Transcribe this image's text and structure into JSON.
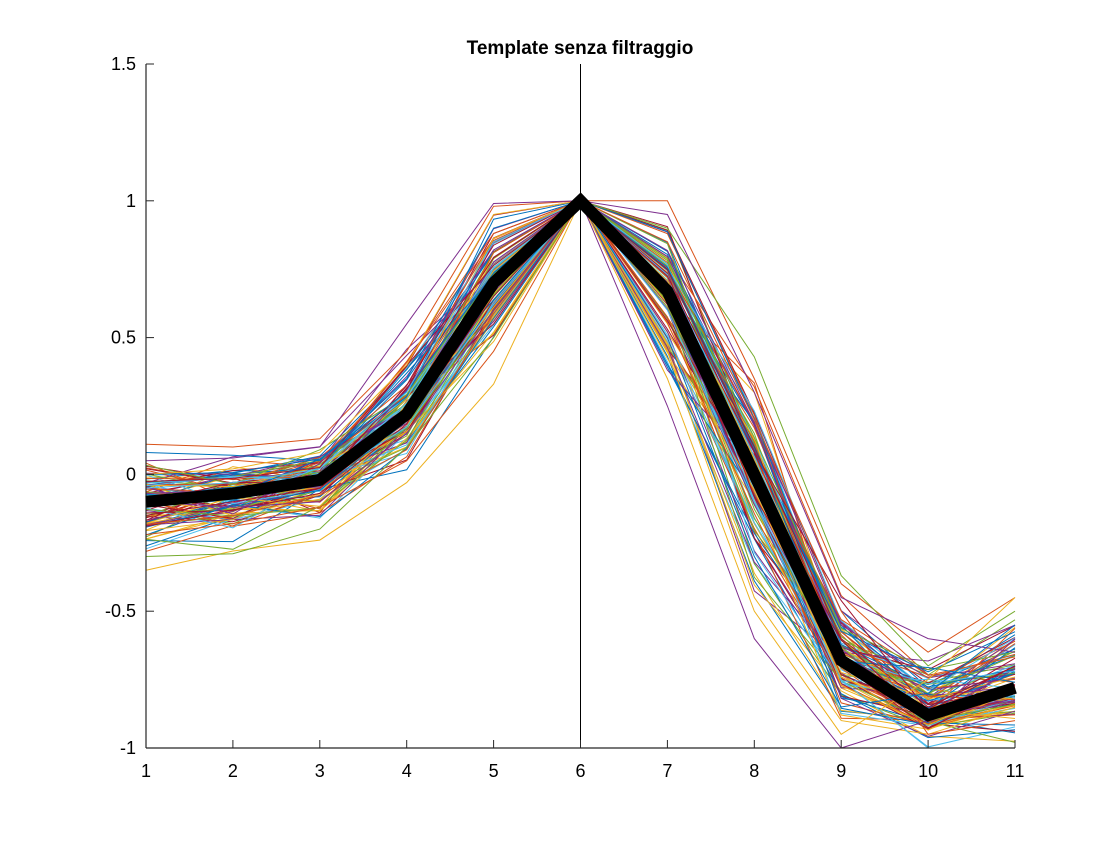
{
  "chart_data": {
    "type": "line",
    "title": "Template senza filtraggio",
    "xlabel": "",
    "ylabel": "",
    "xlim": [
      1,
      11
    ],
    "ylim": [
      -1,
      1.5
    ],
    "x": [
      1,
      2,
      3,
      4,
      5,
      6,
      7,
      8,
      9,
      10,
      11
    ],
    "x_tick_labels": [
      "1",
      "2",
      "3",
      "4",
      "5",
      "6",
      "7",
      "8",
      "9",
      "10",
      "11"
    ],
    "y_ticks": [
      -1,
      -0.5,
      0,
      0.5,
      1,
      1.5
    ],
    "y_tick_labels": [
      "-1",
      "-0.5",
      "0",
      "0.5",
      "1",
      "1.5"
    ],
    "reference_line_x": 6,
    "mean_template": {
      "color": "#000000",
      "values": [
        -0.1,
        -0.07,
        -0.02,
        0.22,
        0.7,
        1.0,
        0.67,
        0.0,
        -0.68,
        -0.88,
        -0.78
      ]
    },
    "individual_traces": {
      "count": 120,
      "colors": [
        "#0072BD",
        "#D95319",
        "#EDB120",
        "#7E2F8E",
        "#77AC30",
        "#4DBEEE",
        "#A2142F"
      ],
      "envelope_min": [
        -0.35,
        -0.3,
        -0.25,
        -0.05,
        0.32,
        1.0,
        0.2,
        -0.6,
        -1.0,
        -1.0,
        -1.0
      ],
      "envelope_max": [
        0.11,
        0.11,
        0.13,
        0.55,
        0.99,
        1.0,
        1.0,
        0.43,
        -0.37,
        -0.6,
        -0.43
      ],
      "sample_traces": [
        [
          0.11,
          0.1,
          0.13,
          0.45,
          0.98,
          1.0,
          1.0,
          0.35,
          -0.4,
          -0.65,
          -0.45
        ],
        [
          -0.35,
          -0.28,
          -0.24,
          -0.03,
          0.33,
          1.0,
          0.45,
          -0.45,
          -0.9,
          -0.95,
          -0.85
        ],
        [
          0.05,
          0.06,
          0.1,
          0.55,
          0.99,
          1.0,
          0.25,
          -0.6,
          -1.0,
          -0.9,
          -0.6
        ],
        [
          -0.3,
          -0.29,
          -0.2,
          0.1,
          0.5,
          1.0,
          0.9,
          0.43,
          -0.37,
          -0.7,
          -0.5
        ],
        [
          -0.05,
          -0.03,
          0.02,
          0.3,
          0.85,
          1.0,
          0.6,
          -0.1,
          -0.75,
          -1.0,
          -1.0
        ],
        [
          -0.15,
          -0.1,
          -0.05,
          0.2,
          0.65,
          1.0,
          0.75,
          0.1,
          -0.6,
          -0.85,
          -0.7
        ],
        [
          0.08,
          0.07,
          0.05,
          0.35,
          0.9,
          1.0,
          0.5,
          -0.3,
          -0.85,
          -0.8,
          -0.55
        ],
        [
          -0.22,
          -0.18,
          -0.12,
          0.05,
          0.45,
          1.0,
          0.85,
          0.2,
          -0.5,
          -0.95,
          -0.9
        ],
        [
          0.0,
          0.02,
          0.08,
          0.4,
          0.95,
          1.0,
          0.35,
          -0.5,
          -0.95,
          -0.75,
          -0.45
        ],
        [
          -0.1,
          -0.12,
          -0.1,
          0.15,
          0.6,
          1.0,
          0.95,
          0.3,
          -0.45,
          -0.6,
          -0.65
        ]
      ]
    }
  }
}
